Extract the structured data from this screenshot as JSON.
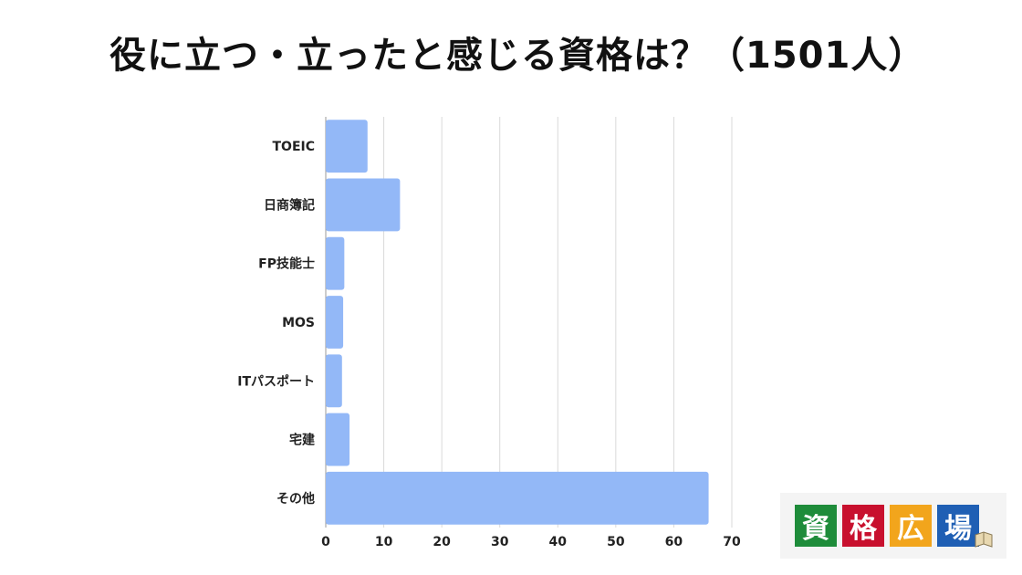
{
  "chart_data": {
    "type": "bar",
    "orientation": "horizontal",
    "title": "役に立つ・立ったと感じる資格は？（1501人）",
    "categories": [
      "TOEIC",
      "日商簿記",
      "FP技能士",
      "MOS",
      "ITパスポート",
      "宅建",
      "その他"
    ],
    "values": [
      7.2,
      12.8,
      3.2,
      3.0,
      2.8,
      4.1,
      66.0
    ],
    "xlim": [
      0,
      70
    ],
    "xticks": [
      0,
      10,
      20,
      30,
      40,
      50,
      60,
      70
    ],
    "xlabel": "",
    "ylabel": "",
    "grid": true,
    "bar_color": "#93b8f7",
    "legend": "none"
  },
  "logo": {
    "chars": [
      "資",
      "格",
      "広",
      "場"
    ],
    "colors": [
      "#1e8c3a",
      "#c8102e",
      "#f2a51c",
      "#1f5fb4"
    ]
  }
}
